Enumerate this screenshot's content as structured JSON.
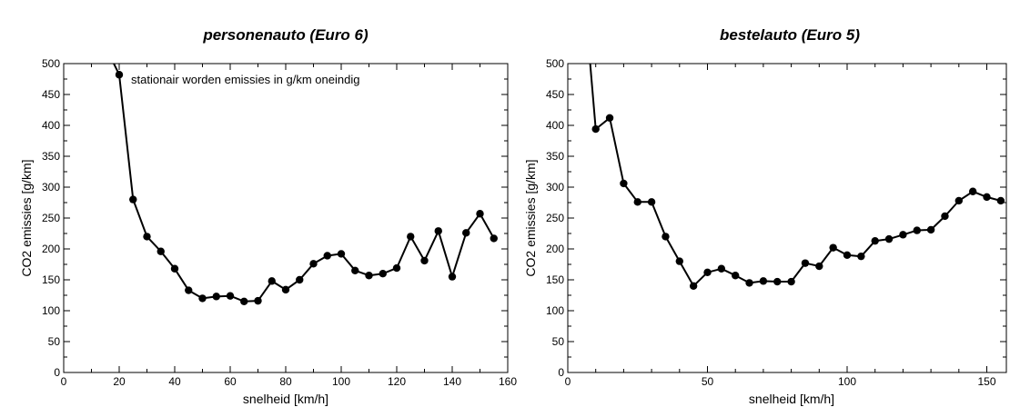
{
  "chart_data": [
    {
      "type": "line",
      "title": "personenauto (Euro 6)",
      "xlabel": "snelheid [km/h]",
      "ylabel": "CO2 emissies [g/km]",
      "xlim": [
        0,
        160
      ],
      "ylim": [
        0,
        500
      ],
      "x_ticks": [
        0,
        20,
        40,
        60,
        80,
        100,
        120,
        140,
        160
      ],
      "y_ticks": [
        0,
        50,
        100,
        150,
        200,
        250,
        300,
        350,
        400,
        450,
        500
      ],
      "annotation": "stationair worden emissies in g/km oneindig",
      "grid": false,
      "series": [
        {
          "line_x": [
            17,
            20,
            25,
            30,
            35,
            40,
            45,
            50,
            55,
            60,
            65,
            70,
            75,
            80,
            85,
            90,
            95,
            100,
            105,
            110,
            115,
            120,
            125,
            130,
            135,
            140,
            145,
            150,
            155
          ],
          "line_y": [
            510,
            482,
            280,
            220,
            196,
            168,
            133,
            120,
            123,
            124,
            115,
            116,
            148,
            134,
            150,
            176,
            189,
            192,
            165,
            157,
            160,
            169,
            220,
            181,
            229,
            155,
            226,
            257,
            217
          ],
          "x": [
            20,
            25,
            30,
            35,
            40,
            45,
            50,
            55,
            60,
            65,
            70,
            75,
            80,
            85,
            90,
            95,
            100,
            105,
            110,
            115,
            120,
            125,
            130,
            135,
            140,
            145,
            150,
            155
          ],
          "y": [
            482,
            280,
            220,
            196,
            168,
            133,
            120,
            123,
            124,
            115,
            116,
            148,
            134,
            150,
            176,
            189,
            192,
            165,
            157,
            160,
            169,
            220,
            181,
            229,
            155,
            226,
            257,
            217
          ]
        }
      ]
    },
    {
      "type": "line",
      "title": "bestelauto (Euro 5)",
      "xlabel": "snelheid [km/h]",
      "ylabel": "CO2 emissies [g/km]",
      "xlim": [
        0,
        157
      ],
      "ylim": [
        0,
        500
      ],
      "x_ticks": [
        0,
        50,
        100,
        150
      ],
      "y_ticks": [
        0,
        50,
        100,
        150,
        200,
        250,
        300,
        350,
        400,
        450,
        500
      ],
      "grid": false,
      "series": [
        {
          "line_x": [
            8,
            10,
            15,
            20,
            25,
            30,
            35,
            40,
            45,
            50,
            55,
            60,
            65,
            70,
            75,
            80,
            85,
            90,
            95,
            100,
            105,
            110,
            115,
            120,
            125,
            130,
            135,
            140,
            145,
            150,
            155
          ],
          "line_y": [
            500,
            394,
            412,
            306,
            276,
            276,
            220,
            180,
            140,
            162,
            168,
            157,
            145,
            148,
            147,
            147,
            177,
            172,
            202,
            190,
            188,
            213,
            216,
            223,
            230,
            231,
            253,
            278,
            293,
            284,
            278
          ],
          "x": [
            10,
            15,
            20,
            25,
            30,
            35,
            40,
            45,
            50,
            55,
            60,
            65,
            70,
            75,
            80,
            85,
            90,
            95,
            100,
            105,
            110,
            115,
            120,
            125,
            130,
            135,
            140,
            145,
            150,
            155
          ],
          "y": [
            394,
            412,
            306,
            276,
            276,
            220,
            180,
            140,
            162,
            168,
            157,
            145,
            148,
            147,
            147,
            177,
            172,
            202,
            190,
            188,
            213,
            216,
            223,
            230,
            231,
            253,
            278,
            293,
            284,
            278
          ]
        }
      ]
    }
  ]
}
